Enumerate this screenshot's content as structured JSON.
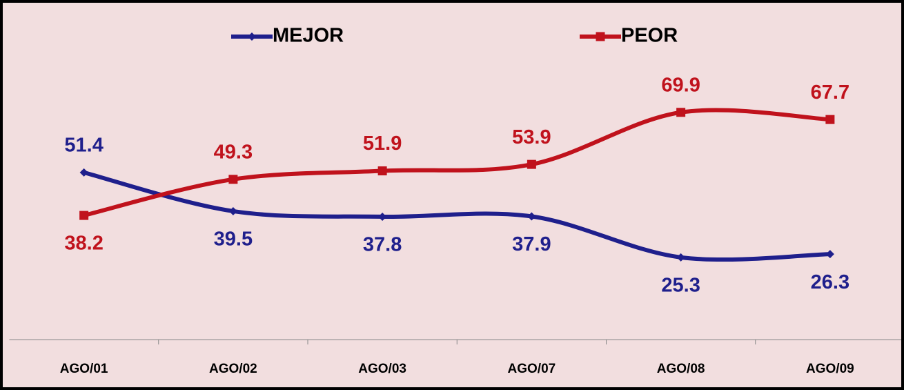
{
  "chart_data": {
    "type": "line",
    "categories": [
      "AGO/01",
      "AGO/02",
      "AGO/03",
      "AGO/07",
      "AGO/08",
      "AGO/09"
    ],
    "series": [
      {
        "name": "MEJOR",
        "color": "#1f1f8c",
        "values": [
          51.4,
          39.5,
          37.8,
          37.9,
          25.3,
          26.3
        ]
      },
      {
        "name": "PEOR",
        "color": "#c0121c",
        "values": [
          38.2,
          49.3,
          51.9,
          53.9,
          69.9,
          67.7
        ]
      }
    ],
    "ylim": [
      0,
      100
    ],
    "smooth": true,
    "legend": "top"
  }
}
